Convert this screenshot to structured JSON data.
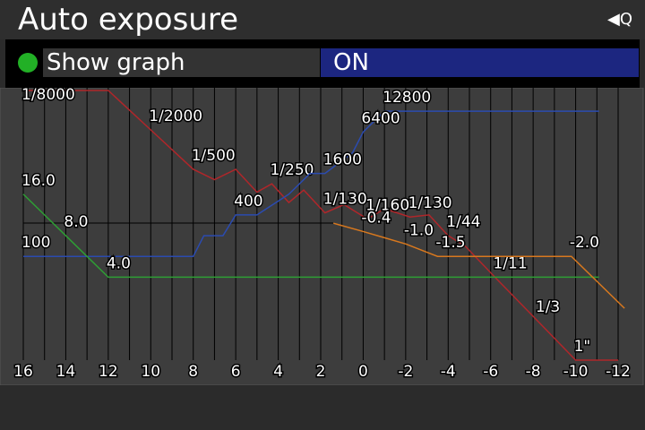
{
  "header": {
    "title": "Auto exposure",
    "back_icon_label": "Q"
  },
  "setting": {
    "label": "Show graph",
    "value": "ON"
  },
  "chart_data": {
    "type": "line",
    "xlim": [
      16,
      -12
    ],
    "ylim": [
      0,
      13
    ],
    "xticks": [
      16,
      14,
      12,
      10,
      8,
      6,
      4,
      2,
      0,
      -2,
      -4,
      -6,
      -8,
      -10,
      -12
    ],
    "grid": true,
    "series": [
      {
        "color": "#b0262a",
        "x": [
          16,
          12,
          10,
          8,
          7,
          6,
          5,
          4.3,
          3.5,
          2.8,
          1.8,
          0.9,
          -0.2,
          -1,
          -2.2,
          -3.1,
          -4,
          -4.8,
          -6.2,
          -8.2,
          -10,
          -12
        ],
        "values": [
          13,
          13,
          11.1,
          9.2,
          8.7,
          9.2,
          8.1,
          8.5,
          7.6,
          8.2,
          7.1,
          7.5,
          6.8,
          7.3,
          6.9,
          7.0,
          6.0,
          5.5,
          4.0,
          1.9,
          0,
          0
        ],
        "value_labels": [
          "1/8000",
          null,
          "1/2000",
          "1/500",
          null,
          null,
          null,
          "1/250",
          null,
          null,
          "1/130",
          null,
          "1/160",
          null,
          "1/130",
          null,
          "1/44",
          null,
          "1/11",
          "1/3",
          "1\"",
          null
        ]
      },
      {
        "color": "#2b4bb0",
        "x": [
          16,
          8,
          7.5,
          6.6,
          6,
          5,
          3.5,
          2.5,
          1.8,
          0.5,
          0,
          -1,
          -11.1
        ],
        "values": [
          5,
          5,
          6,
          6,
          7,
          7,
          8,
          9,
          9,
          10,
          11,
          12,
          12
        ],
        "value_labels": [
          "100",
          null,
          null,
          null,
          "400",
          null,
          null,
          null,
          "1600",
          null,
          "6400",
          "12800",
          null
        ]
      },
      {
        "color": "#2e9e34",
        "x": [
          16,
          14,
          12,
          -11.1
        ],
        "values": [
          8,
          6,
          4,
          4
        ],
        "value_labels": [
          "16.0",
          "8.0",
          "4.0",
          null
        ]
      },
      {
        "color": "#d8781e",
        "x": [
          1.4,
          0,
          -1,
          -2,
          -3.5,
          -9.8,
          -12.3
        ],
        "values": [
          6.6,
          6.2,
          5.9,
          5.6,
          5,
          5,
          2.5
        ],
        "value_labels": [
          null,
          "-0.4",
          null,
          "-1.0",
          "-1.5",
          "-2.0",
          null
        ]
      }
    ]
  }
}
